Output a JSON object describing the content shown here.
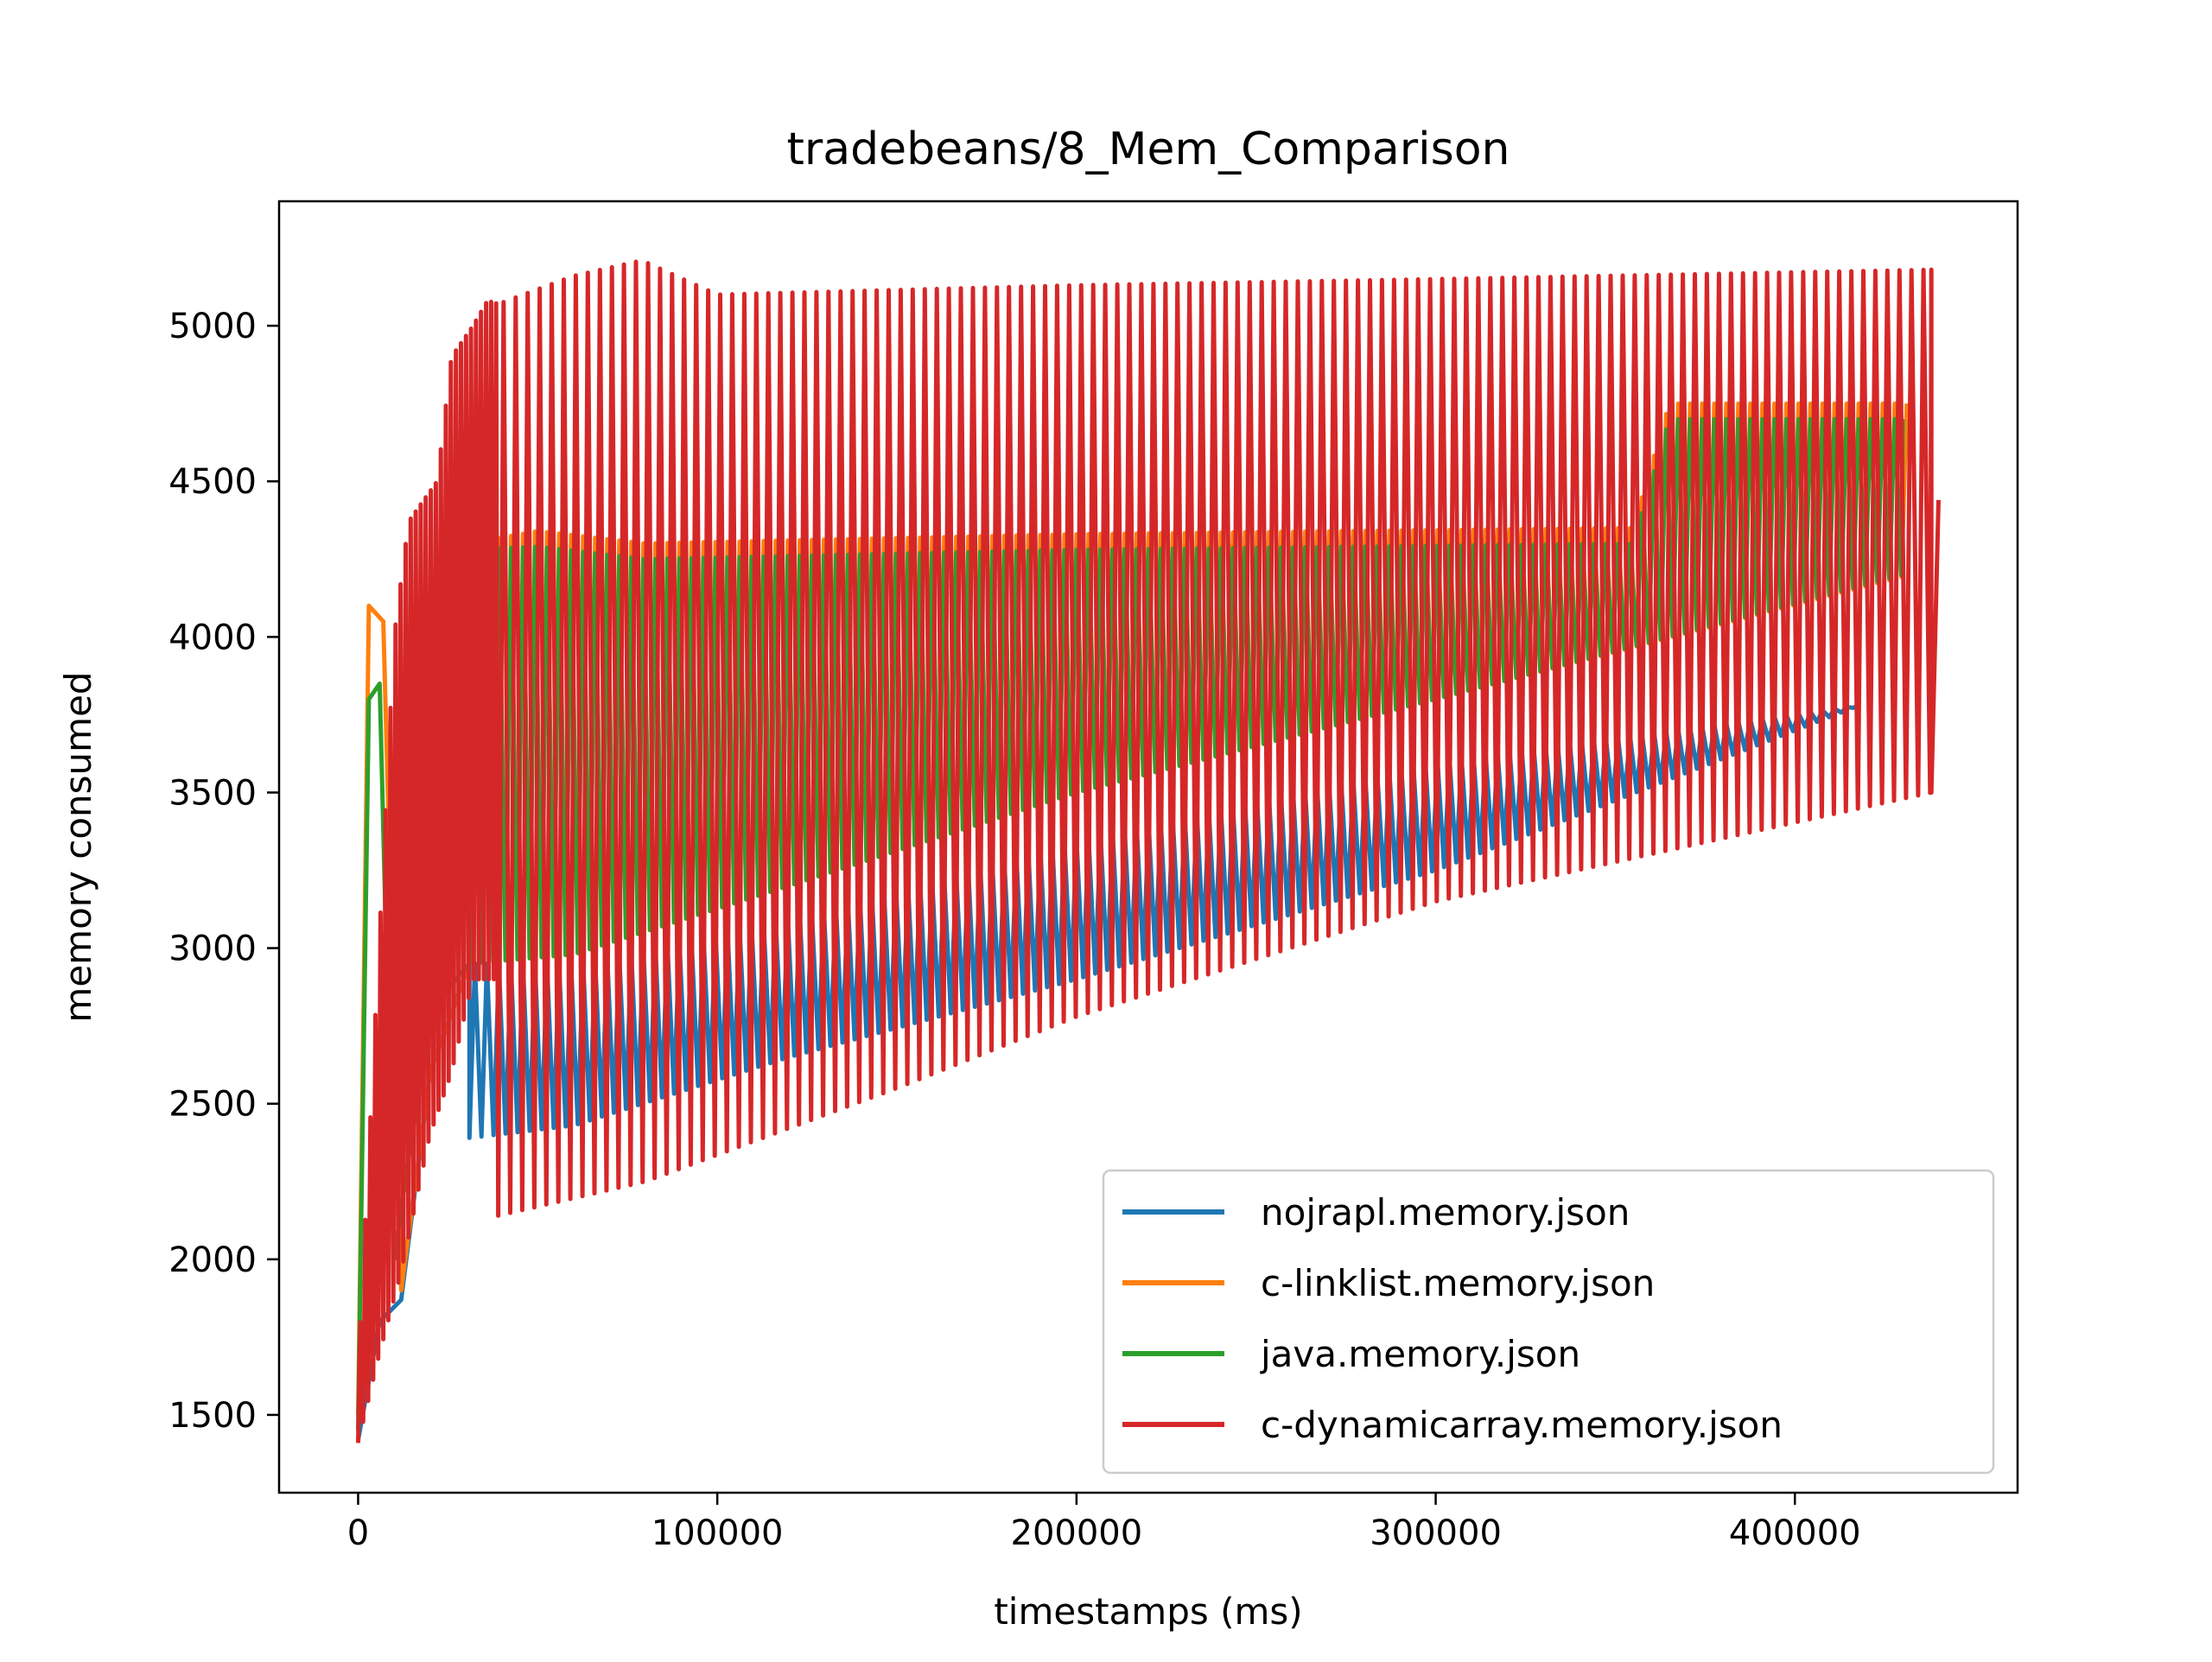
{
  "chart_data": {
    "type": "line",
    "title": "tradebeans/8_Mem_Comparison",
    "xlabel": "timestamps (ms)",
    "ylabel": "memory consumed",
    "xlim": [
      -22000,
      462000
    ],
    "ylim": [
      1250,
      5400
    ],
    "xticks": [
      0,
      100000,
      200000,
      300000,
      400000
    ],
    "xtick_labels": [
      "0",
      "100000",
      "200000",
      "300000",
      "400000"
    ],
    "yticks": [
      1500,
      2000,
      2500,
      3000,
      3500,
      4000,
      4500,
      5000
    ],
    "ytick_labels": [
      "1500",
      "2000",
      "2500",
      "3000",
      "3500",
      "4000",
      "4500",
      "5000"
    ],
    "grid": false,
    "legend_position": "lower right",
    "series": [
      {
        "name": "nojrapl.memory.json",
        "color": "#1f77b4",
        "sawtooth": {
          "start_x": 31000,
          "end_x": 418000,
          "period_ms": 3350,
          "peaks": [
            [
              31000,
              2950
            ],
            [
              60000,
              2950
            ],
            [
              120000,
              3100
            ],
            [
              200000,
              3350
            ],
            [
              300000,
              3600
            ],
            [
              418000,
              3780
            ]
          ],
          "troughs": [
            [
              31000,
              2390
            ],
            [
              60000,
              2430
            ],
            [
              120000,
              2650
            ],
            [
              200000,
              2900
            ],
            [
              300000,
              3250
            ],
            [
              418000,
              3780
            ]
          ]
        },
        "ramp": [
          [
            0,
            1420
          ],
          [
            6000,
            1800
          ],
          [
            12000,
            1870
          ],
          [
            20000,
            2600
          ],
          [
            31000,
            2950
          ]
        ]
      },
      {
        "name": "c-linklist.memory.json",
        "color": "#ff7f0e",
        "sawtooth": {
          "start_x": 31000,
          "end_x": 432000,
          "period_ms": 3350,
          "peaks": [
            [
              31000,
              4300
            ],
            [
              50000,
              4340
            ],
            [
              80000,
              4300
            ],
            [
              200000,
              4330
            ],
            [
              355000,
              4350
            ],
            [
              365000,
              4750
            ],
            [
              432000,
              4750
            ]
          ],
          "troughs": [
            [
              31000,
              2950
            ],
            [
              60000,
              2980
            ],
            [
              120000,
              3200
            ],
            [
              200000,
              3500
            ],
            [
              300000,
              3800
            ],
            [
              432000,
              4200
            ]
          ]
        },
        "ramp": [
          [
            0,
            1500
          ],
          [
            3000,
            4100
          ],
          [
            7000,
            4050
          ],
          [
            12000,
            1900
          ],
          [
            20000,
            2600
          ],
          [
            31000,
            2950
          ]
        ]
      },
      {
        "name": "java.memory.json",
        "color": "#2ca02c",
        "sawtooth": {
          "start_x": 31000,
          "end_x": 430000,
          "period_ms": 3350,
          "peaks": [
            [
              31000,
              4280
            ],
            [
              50000,
              4290
            ],
            [
              80000,
              4250
            ],
            [
              200000,
              4280
            ],
            [
              355000,
              4300
            ],
            [
              365000,
              4700
            ],
            [
              430000,
              4700
            ]
          ],
          "troughs": [
            [
              31000,
              2950
            ],
            [
              60000,
              2980
            ],
            [
              120000,
              3200
            ],
            [
              200000,
              3500
            ],
            [
              300000,
              3800
            ],
            [
              430000,
              4200
            ]
          ]
        },
        "ramp": [
          [
            0,
            1450
          ],
          [
            3000,
            3800
          ],
          [
            6000,
            3850
          ],
          [
            10000,
            2000
          ],
          [
            20000,
            2800
          ],
          [
            31000,
            2950
          ]
        ]
      },
      {
        "name": "c-dynamicarray.memory.json",
        "color": "#d62728",
        "sawtooth": {
          "start_x": 39000,
          "end_x": 438000,
          "period_ms": 3350,
          "peaks": [
            [
              39000,
              5070
            ],
            [
              60000,
              5160
            ],
            [
              79000,
              5210
            ],
            [
              100000,
              5100
            ],
            [
              200000,
              5130
            ],
            [
              300000,
              5150
            ],
            [
              438000,
              5180
            ]
          ],
          "troughs": [
            [
              39000,
              2140
            ],
            [
              80000,
              2250
            ],
            [
              150000,
              2550
            ],
            [
              200000,
              2780
            ],
            [
              300000,
              3150
            ],
            [
              438000,
              3500
            ]
          ]
        },
        "ramp_cycles": {
          "start_x": 0,
          "end_x": 39000,
          "period_ms": 1400,
          "peaks": [
            [
              0,
              1650
            ],
            [
              10000,
              4000
            ],
            [
              14000,
              4370
            ],
            [
              22000,
              4500
            ],
            [
              26000,
              4900
            ],
            [
              32000,
              5000
            ],
            [
              36000,
              5080
            ],
            [
              39000,
              5070
            ]
          ],
          "troughs": [
            [
              0,
              1410
            ],
            [
              6000,
              1700
            ],
            [
              12000,
              1960
            ],
            [
              20000,
              2400
            ],
            [
              26000,
              2600
            ],
            [
              32000,
              2900
            ],
            [
              39000,
              2900
            ]
          ]
        },
        "tail": [
          [
            438000,
            3500
          ],
          [
            440000,
            4440
          ]
        ]
      }
    ]
  }
}
